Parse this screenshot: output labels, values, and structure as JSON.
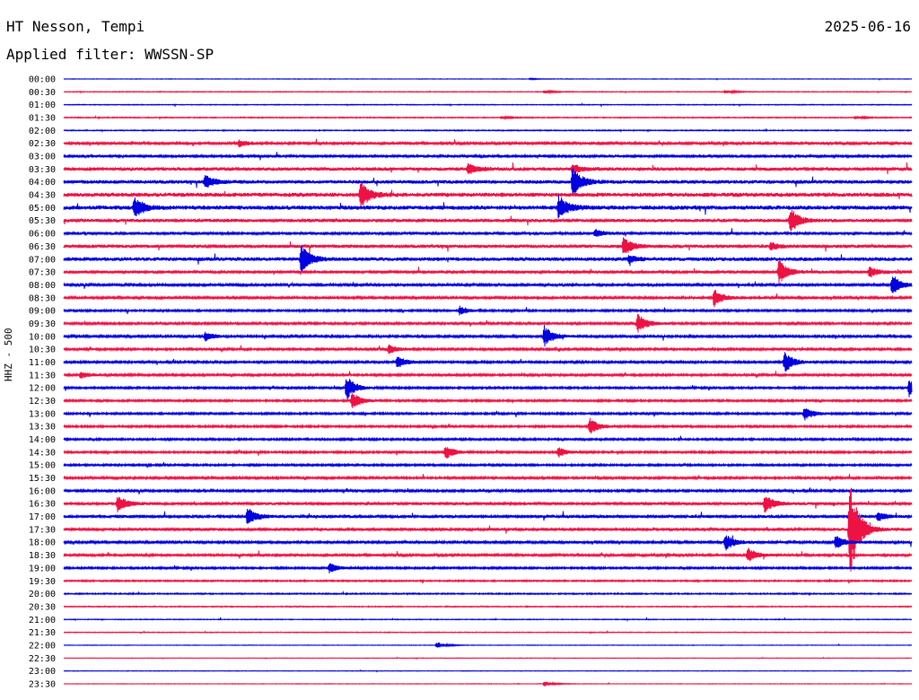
{
  "header": {
    "station": "HT Nesson, Tempi",
    "date": "2025-06-16",
    "filter": "Applied filter: WWSSN-SP"
  },
  "chart_data": {
    "type": "line",
    "title": "HT Nesson, Tempi",
    "ylabel": "HHZ - 500",
    "xlim": [
      0,
      30
    ],
    "row_labels": [
      "00:00",
      "00:30",
      "01:00",
      "01:30",
      "02:00",
      "02:30",
      "03:00",
      "03:30",
      "04:00",
      "04:30",
      "05:00",
      "05:30",
      "06:00",
      "06:30",
      "07:00",
      "07:30",
      "08:00",
      "08:30",
      "09:00",
      "09:30",
      "10:00",
      "10:30",
      "11:00",
      "11:30",
      "12:00",
      "12:30",
      "13:00",
      "13:30",
      "14:00",
      "14:30",
      "15:00",
      "15:30",
      "16:00",
      "16:30",
      "17:00",
      "17:30",
      "18:00",
      "18:30",
      "19:00",
      "19:30",
      "20:00",
      "20:30",
      "21:00",
      "21:30",
      "22:00",
      "22:30",
      "23:00",
      "23:30"
    ],
    "colors": [
      "#0000e0",
      "#ee1144"
    ],
    "noise_levels": [
      0.2,
      0.3,
      0.3,
      0.4,
      0.4,
      1.0,
      1.2,
      1.5,
      1.5,
      1.8,
      1.8,
      1.4,
      1.2,
      1.4,
      1.6,
      1.2,
      1.0,
      1.0,
      0.8,
      0.9,
      1.0,
      0.9,
      0.9,
      0.9,
      0.8,
      0.8,
      0.8,
      0.8,
      0.8,
      0.8,
      0.8,
      0.9,
      0.9,
      1.2,
      1.2,
      1.2,
      1.0,
      1.0,
      0.8,
      0.6,
      0.5,
      0.4,
      0.3,
      0.3,
      0.2,
      0.2,
      0.2,
      0.2
    ],
    "events": [
      {
        "row": 0,
        "minute": 16.5,
        "amp": 0.6
      },
      {
        "row": 1,
        "minute": 17.0,
        "amp": 1.5
      },
      {
        "row": 1,
        "minute": 23.4,
        "amp": 2
      },
      {
        "row": 3,
        "minute": 15.5,
        "amp": 1.2
      },
      {
        "row": 3,
        "minute": 28.0,
        "amp": 1.5
      },
      {
        "row": 5,
        "minute": 6.2,
        "amp": 4
      },
      {
        "row": 7,
        "minute": 14.3,
        "amp": 6
      },
      {
        "row": 7,
        "minute": 18.0,
        "amp": 5
      },
      {
        "row": 8,
        "minute": 5.0,
        "amp": 8
      },
      {
        "row": 8,
        "minute": 18.0,
        "amp": 18
      },
      {
        "row": 9,
        "minute": 10.5,
        "amp": 16
      },
      {
        "row": 10,
        "minute": 2.5,
        "amp": 12
      },
      {
        "row": 10,
        "minute": 17.5,
        "amp": 14
      },
      {
        "row": 11,
        "minute": 25.7,
        "amp": 14
      },
      {
        "row": 12,
        "minute": 18.8,
        "amp": 4
      },
      {
        "row": 13,
        "minute": 19.8,
        "amp": 10
      },
      {
        "row": 13,
        "minute": 25.0,
        "amp": 4
      },
      {
        "row": 14,
        "minute": 8.4,
        "amp": 16
      },
      {
        "row": 14,
        "minute": 20.0,
        "amp": 4
      },
      {
        "row": 15,
        "minute": 25.3,
        "amp": 14
      },
      {
        "row": 15,
        "minute": 28.5,
        "amp": 6
      },
      {
        "row": 16,
        "minute": 29.3,
        "amp": 12
      },
      {
        "row": 17,
        "minute": 23.0,
        "amp": 10
      },
      {
        "row": 18,
        "minute": 14.0,
        "amp": 5
      },
      {
        "row": 19,
        "minute": 20.3,
        "amp": 12
      },
      {
        "row": 20,
        "minute": 5.0,
        "amp": 5
      },
      {
        "row": 20,
        "minute": 17.0,
        "amp": 12
      },
      {
        "row": 21,
        "minute": 11.5,
        "amp": 5
      },
      {
        "row": 22,
        "minute": 11.8,
        "amp": 7
      },
      {
        "row": 22,
        "minute": 25.5,
        "amp": 12
      },
      {
        "row": 23,
        "minute": 0.6,
        "amp": 4
      },
      {
        "row": 24,
        "minute": 10.0,
        "amp": 14
      },
      {
        "row": 24,
        "minute": 29.9,
        "amp": 10
      },
      {
        "row": 25,
        "minute": 10.2,
        "amp": 10
      },
      {
        "row": 26,
        "minute": 26.2,
        "amp": 8
      },
      {
        "row": 27,
        "minute": 18.6,
        "amp": 10
      },
      {
        "row": 29,
        "minute": 13.5,
        "amp": 8
      },
      {
        "row": 29,
        "minute": 17.5,
        "amp": 6
      },
      {
        "row": 33,
        "minute": 1.9,
        "amp": 10
      },
      {
        "row": 33,
        "minute": 24.8,
        "amp": 10
      },
      {
        "row": 34,
        "minute": 6.5,
        "amp": 10
      },
      {
        "row": 34,
        "minute": 28.8,
        "amp": 5
      },
      {
        "row": 35,
        "minute": 27.8,
        "amp": 60
      },
      {
        "row": 36,
        "minute": 23.4,
        "amp": 10
      },
      {
        "row": 36,
        "minute": 27.3,
        "amp": 8
      },
      {
        "row": 37,
        "minute": 24.2,
        "amp": 8
      },
      {
        "row": 38,
        "minute": 9.4,
        "amp": 6
      },
      {
        "row": 44,
        "minute": 13.2,
        "amp": 4
      },
      {
        "row": 47,
        "minute": 17.0,
        "amp": 3
      }
    ]
  }
}
